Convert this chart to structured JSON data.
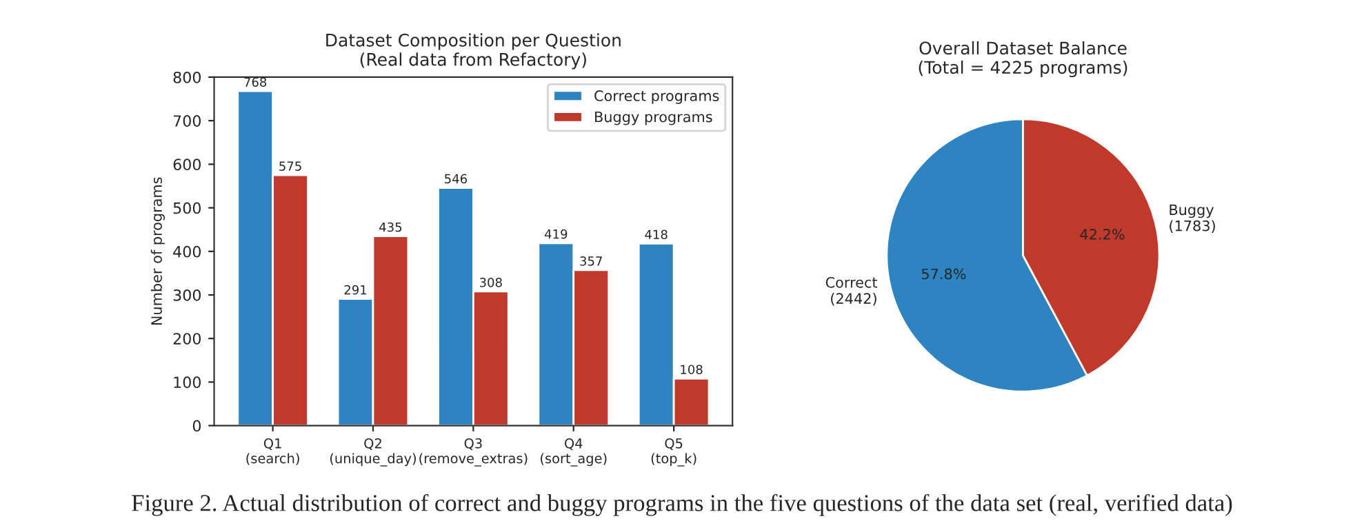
{
  "chart_data": [
    {
      "type": "bar",
      "title": "Dataset Composition per Question\n(Real data from Refactory)",
      "ylabel": "Number of programs",
      "categories": [
        "Q1\n(search)",
        "Q2\n(unique_day)",
        "Q3\n(remove_extras)",
        "Q4\n(sort_age)",
        "Q5\n(top_k)"
      ],
      "series": [
        {
          "name": "Correct programs",
          "color": "#2e84c0",
          "values": [
            768,
            291,
            546,
            419,
            418
          ]
        },
        {
          "name": "Buggy programs",
          "color": "#c0392b",
          "values": [
            575,
            435,
            308,
            357,
            108
          ]
        }
      ],
      "ylim": [
        0,
        800
      ],
      "yticks": [
        0,
        100,
        200,
        300,
        400,
        500,
        600,
        700,
        800
      ],
      "grid": false,
      "legend": "top right",
      "data_labels": true
    },
    {
      "type": "pie",
      "title": "Overall Dataset Balance\n(Total = 4225 programs)",
      "categories": [
        "Correct\n(2442)",
        "Buggy\n(1783)"
      ],
      "values": [
        57.8,
        42.2
      ],
      "colors": [
        "#2e84c0",
        "#c0392b"
      ],
      "value_labels": [
        "57.8%",
        "42.2%"
      ],
      "annotations": [
        "Figure 2. Actual distribution of correct and buggy programs in the five questions of the data set (real, verified data)"
      ]
    }
  ]
}
